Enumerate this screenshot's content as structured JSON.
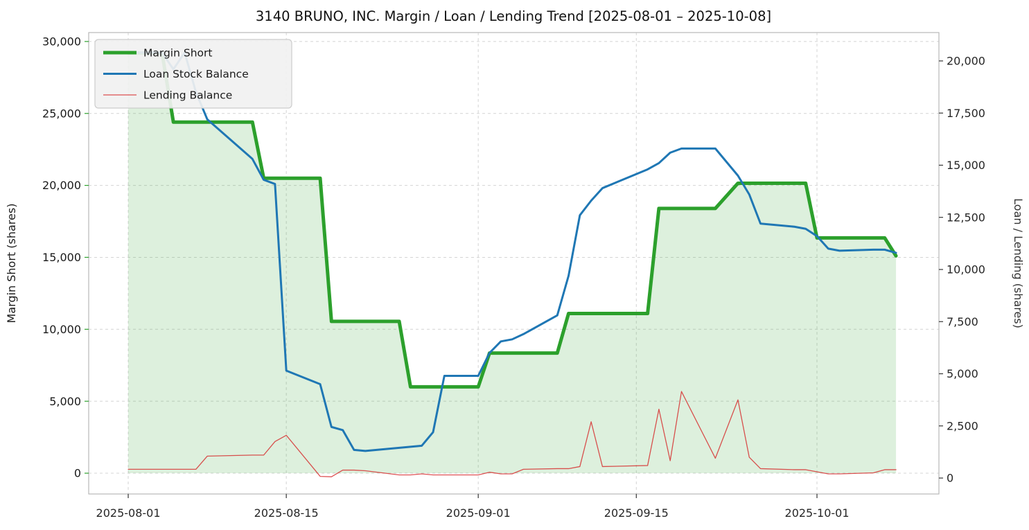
{
  "title": "3140 BRUNO, INC. Margin / Loan / Lending Trend [2025-08-01 – 2025-10-08]",
  "chart_data": {
    "type": "line",
    "grid": true,
    "legend_position": "upper-left",
    "x": [
      "2025-08-01",
      "2025-08-04",
      "2025-08-05",
      "2025-08-06",
      "2025-08-07",
      "2025-08-08",
      "2025-08-12",
      "2025-08-13",
      "2025-08-14",
      "2025-08-15",
      "2025-08-18",
      "2025-08-19",
      "2025-08-20",
      "2025-08-21",
      "2025-08-22",
      "2025-08-25",
      "2025-08-26",
      "2025-08-27",
      "2025-08-28",
      "2025-08-29",
      "2025-09-01",
      "2025-09-02",
      "2025-09-03",
      "2025-09-04",
      "2025-09-05",
      "2025-09-08",
      "2025-09-09",
      "2025-09-10",
      "2025-09-11",
      "2025-09-12",
      "2025-09-16",
      "2025-09-17",
      "2025-09-18",
      "2025-09-19",
      "2025-09-22",
      "2025-09-24",
      "2025-09-25",
      "2025-09-26",
      "2025-09-29",
      "2025-09-30",
      "2025-10-01",
      "2025-10-02",
      "2025-10-03",
      "2025-10-06",
      "2025-10-07",
      "2025-10-08"
    ],
    "series": [
      {
        "name": "Margin Short",
        "axis": "left",
        "color": "#2ca02c",
        "width": 5,
        "fill": true,
        "fill_opacity": 0.16,
        "values": [
          29200,
          29200,
          24400,
          24400,
          24400,
          24400,
          24400,
          20500,
          20500,
          20500,
          20500,
          10550,
          10550,
          10550,
          10550,
          10550,
          6000,
          6000,
          6000,
          6000,
          6000,
          8350,
          8350,
          8350,
          8350,
          8350,
          11100,
          11100,
          11100,
          11100,
          11100,
          18400,
          18400,
          18400,
          18400,
          20150,
          20150,
          20150,
          20150,
          20150,
          16350,
          16350,
          16350,
          16350,
          16350,
          15100
        ]
      },
      {
        "name": "Loan Stock Balance",
        "axis": "right",
        "color": "#1f77b4",
        "width": 3,
        "fill": false,
        "values": [
          20400,
          20400,
          19600,
          20400,
          18500,
          17200,
          15300,
          14300,
          14100,
          5150,
          4500,
          2450,
          2300,
          1350,
          1300,
          1450,
          1500,
          1550,
          2200,
          4900,
          4900,
          6000,
          6550,
          6650,
          6900,
          7800,
          9700,
          12600,
          13300,
          13900,
          14800,
          15100,
          15600,
          15800,
          15800,
          14500,
          13600,
          12200,
          12050,
          11950,
          11600,
          11000,
          10900,
          10950,
          10950,
          10800
        ]
      },
      {
        "name": "Lending Balance",
        "axis": "right",
        "color": "#d62728",
        "width": 1.3,
        "opacity": 0.8,
        "fill": false,
        "values": [
          420,
          420,
          420,
          420,
          420,
          1050,
          1100,
          1100,
          1750,
          2050,
          80,
          60,
          380,
          380,
          350,
          150,
          150,
          200,
          150,
          150,
          150,
          280,
          200,
          200,
          420,
          450,
          450,
          550,
          2700,
          550,
          600,
          3300,
          830,
          4150,
          950,
          3750,
          1000,
          450,
          400,
          400,
          300,
          200,
          200,
          250,
          400,
          400
        ]
      }
    ],
    "left_axis": {
      "label": "Margin Short (shares)",
      "color": "#2ca02c",
      "ticks": [
        0,
        5000,
        10000,
        15000,
        20000,
        25000,
        30000
      ],
      "range": [
        -1444,
        30620
      ]
    },
    "right_axis": {
      "label": "Loan / Lending (shares)",
      "color": "#333333",
      "ticks": [
        0,
        2500,
        5000,
        7500,
        10000,
        12500,
        15000,
        17500,
        20000
      ],
      "range": [
        -764,
        21360
      ]
    },
    "x_axis": {
      "ticks": [
        "2025-08-01",
        "2025-08-15",
        "2025-09-01",
        "2025-09-15",
        "2025-10-01"
      ],
      "range_days": [
        -3.5,
        71.8
      ]
    }
  }
}
